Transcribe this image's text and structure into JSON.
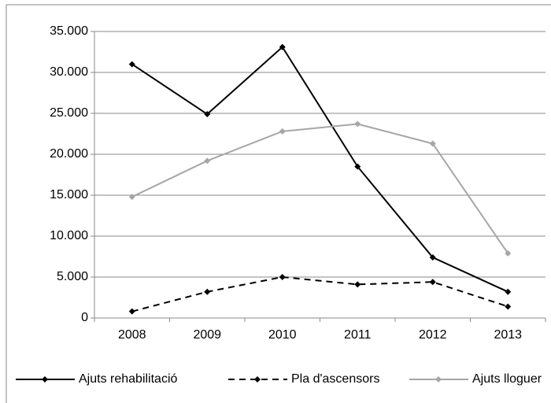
{
  "chart_data": {
    "type": "line",
    "categories": [
      "2008",
      "2009",
      "2010",
      "2011",
      "2012",
      "2013"
    ],
    "series": [
      {
        "name": "Ajuts rehabilitació",
        "color": "#000000",
        "line_style": "solid",
        "values": [
          31000,
          24900,
          33100,
          18500,
          7400,
          3200
        ]
      },
      {
        "name": "Pla d'ascensors",
        "color": "#000000",
        "line_style": "dashed",
        "values": [
          800,
          3200,
          5000,
          4100,
          4400,
          1400
        ]
      },
      {
        "name": "Ajuts lloguer",
        "color": "#a6a6a6",
        "line_style": "solid",
        "values": [
          14800,
          19200,
          22800,
          23700,
          21300,
          7900
        ]
      }
    ],
    "ylim": [
      0,
      35000
    ],
    "yticks": [
      0,
      {
        "value": 5000,
        "label": "5.000"
      },
      {
        "value": 10000,
        "label": "10.000"
      },
      {
        "value": 15000,
        "label": "15.000"
      },
      {
        "value": 20000,
        "label": "20.000"
      },
      {
        "value": 25000,
        "label": "25.000"
      },
      {
        "value": 30000,
        "label": "30.000"
      },
      {
        "value": 35000,
        "label": "35.000"
      }
    ],
    "grid": true,
    "legend": "bottom"
  }
}
